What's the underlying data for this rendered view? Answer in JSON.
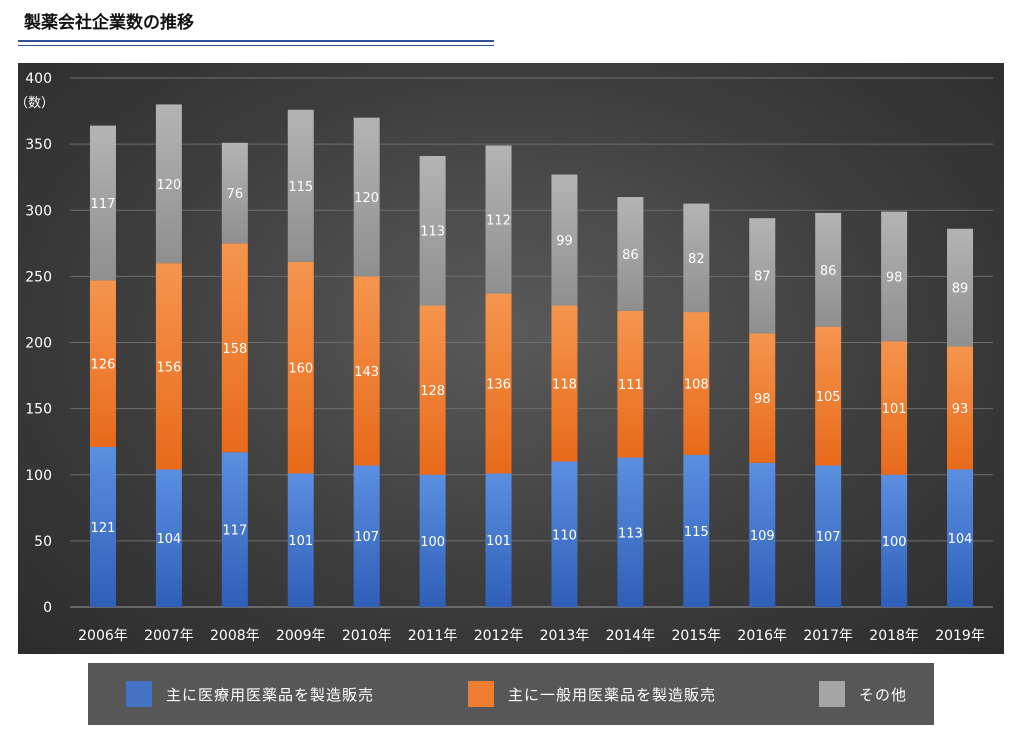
{
  "page": {
    "title": "製薬会社企業数の推移"
  },
  "chart_data": {
    "type": "bar",
    "stacked": true,
    "title": "",
    "ylabel": "（数）",
    "xlabel": "",
    "ylim": [
      0,
      400
    ],
    "yticks": [
      0,
      50,
      100,
      150,
      200,
      250,
      300,
      350,
      400
    ],
    "grid": true,
    "legend_position": "bottom",
    "categories": [
      "2006年",
      "2007年",
      "2008年",
      "2009年",
      "2010年",
      "2011年",
      "2012年",
      "2013年",
      "2014年",
      "2015年",
      "2016年",
      "2017年",
      "2018年",
      "2019年"
    ],
    "series": [
      {
        "name": "主に医療用医薬品を製造販売",
        "color": "#4472C4",
        "values": [
          121,
          104,
          117,
          101,
          107,
          100,
          101,
          110,
          113,
          115,
          109,
          107,
          100,
          104
        ]
      },
      {
        "name": "主に一般用医薬品を製造販売",
        "color": "#ED7D31",
        "values": [
          126,
          156,
          158,
          160,
          143,
          128,
          136,
          118,
          111,
          108,
          98,
          105,
          101,
          93
        ]
      },
      {
        "name": "その他",
        "color": "#A5A5A5",
        "values": [
          117,
          120,
          76,
          115,
          120,
          113,
          112,
          99,
          86,
          82,
          87,
          86,
          98,
          89
        ]
      }
    ]
  }
}
